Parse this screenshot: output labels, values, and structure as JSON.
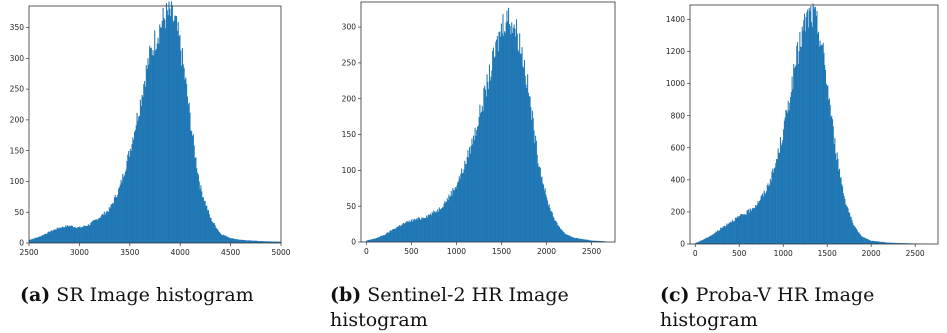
{
  "chart_data": [
    {
      "type": "bar",
      "panel_tag": "(a)",
      "caption": "SR Image histogram",
      "title": "",
      "xlabel": "",
      "ylabel": "",
      "xlim": [
        2500,
        5000
      ],
      "ylim": [
        0,
        385
      ],
      "xticks": [
        2500,
        3000,
        3500,
        4000,
        4500,
        5000
      ],
      "yticks": [
        0,
        50,
        100,
        150,
        200,
        250,
        300,
        350
      ],
      "color": "#1f77b4",
      "series": [
        {
          "x": [
            2500,
            2600,
            2700,
            2800,
            2900,
            3000,
            3100,
            3200,
            3300,
            3400,
            3500,
            3600,
            3650,
            3700,
            3750,
            3800,
            3850,
            3900,
            3950,
            4000,
            4050,
            4100,
            4150,
            4200,
            4300,
            4400,
            4500,
            4600,
            4800,
            5000
          ],
          "counts": [
            5,
            10,
            18,
            25,
            28,
            25,
            30,
            42,
            55,
            90,
            150,
            225,
            270,
            305,
            330,
            352,
            368,
            372,
            358,
            320,
            265,
            200,
            140,
            90,
            40,
            15,
            8,
            5,
            3,
            2
          ]
        }
      ]
    },
    {
      "type": "bar",
      "panel_tag": "(b)",
      "caption": "Sentinel-2 HR Image histogram",
      "title": "",
      "xlabel": "",
      "ylabel": "",
      "xlim": [
        -60,
        2760
      ],
      "ylim": [
        0,
        335
      ],
      "xticks": [
        0,
        500,
        1000,
        1500,
        2000,
        2500
      ],
      "yticks": [
        0,
        50,
        100,
        150,
        200,
        250,
        300
      ],
      "color": "#1f77b4",
      "series": [
        {
          "x": [
            0,
            100,
            200,
            300,
            400,
            500,
            600,
            700,
            800,
            900,
            1000,
            1100,
            1200,
            1300,
            1400,
            1450,
            1500,
            1550,
            1600,
            1650,
            1700,
            1750,
            1800,
            1850,
            1900,
            2000,
            2100,
            2200,
            2300,
            2500,
            2650
          ],
          "counts": [
            2,
            5,
            10,
            18,
            25,
            30,
            33,
            38,
            45,
            60,
            80,
            110,
            150,
            200,
            250,
            275,
            300,
            315,
            310,
            300,
            280,
            250,
            210,
            165,
            120,
            60,
            28,
            12,
            6,
            2,
            1
          ]
        }
      ]
    },
    {
      "type": "bar",
      "panel_tag": "(c)",
      "caption": "Proba-V HR Image histogram",
      "title": "",
      "xlabel": "",
      "ylabel": "",
      "xlim": [
        -60,
        2760
      ],
      "ylim": [
        0,
        1490
      ],
      "xticks": [
        0,
        500,
        1000,
        1500,
        2000,
        2500
      ],
      "yticks": [
        0,
        200,
        400,
        600,
        800,
        1000,
        1200,
        1400
      ],
      "color": "#1f77b4",
      "series": [
        {
          "x": [
            0,
            100,
            200,
            300,
            400,
            500,
            600,
            700,
            800,
            900,
            1000,
            1050,
            1100,
            1150,
            1200,
            1250,
            1300,
            1350,
            1400,
            1450,
            1500,
            1550,
            1600,
            1700,
            1800,
            1900,
            2000,
            2200,
            2500,
            2650
          ],
          "counts": [
            5,
            30,
            60,
            100,
            140,
            170,
            200,
            250,
            330,
            470,
            700,
            850,
            1000,
            1150,
            1280,
            1380,
            1430,
            1420,
            1340,
            1200,
            1000,
            780,
            570,
            280,
            110,
            45,
            20,
            8,
            3,
            1
          ]
        }
      ]
    }
  ]
}
